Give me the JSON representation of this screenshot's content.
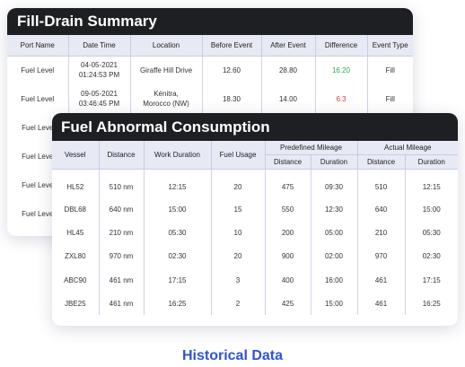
{
  "fill_drain": {
    "title": "Fill-Drain Summary",
    "headers": [
      "Port Name",
      "Date Time",
      "Location",
      "Before Event",
      "After Event",
      "Difference",
      "Event Type"
    ],
    "rows": [
      {
        "port": "Fuel Level",
        "date": "04-05-2021",
        "time": "01:24:53 PM",
        "loc1": "Giraffe Hill Drive",
        "loc2": "",
        "before": "12.60",
        "after": "28.80",
        "diff": "16.20",
        "diff_color": "green",
        "type": "Fill"
      },
      {
        "port": "Fuel Level",
        "date": "09-05-2021",
        "time": "03:46:45 PM",
        "loc1": "Kénitra,",
        "loc2": "Morocco (NW)",
        "before": "18.30",
        "after": "14.00",
        "diff": "6.3",
        "diff_color": "red",
        "type": "Fill"
      },
      {
        "port": "Fuel Leve",
        "date": "",
        "time": "",
        "loc1": "",
        "loc2": "",
        "before": "",
        "after": "",
        "diff": "",
        "diff_color": "",
        "type": ""
      },
      {
        "port": "Fuel Leve",
        "date": "",
        "time": "",
        "loc1": "",
        "loc2": "",
        "before": "",
        "after": "",
        "diff": "",
        "diff_color": "",
        "type": ""
      },
      {
        "port": "Fuel Leve",
        "date": "",
        "time": "",
        "loc1": "",
        "loc2": "",
        "before": "",
        "after": "",
        "diff": "",
        "diff_color": "",
        "type": ""
      },
      {
        "port": "Fuel Leve",
        "date": "",
        "time": "",
        "loc1": "",
        "loc2": "",
        "before": "",
        "after": "",
        "diff": "",
        "diff_color": "",
        "type": ""
      }
    ]
  },
  "abnormal": {
    "title": "Fuel Abnormal Consumption",
    "headers": {
      "vessel": "Vessel",
      "distance": "Distance",
      "work_duration": "Work Duration",
      "fuel_usage": "Fuel Usage",
      "predefined": "Predefined Mileage",
      "actual": "Actual Mileage",
      "sub_distance": "Distance",
      "sub_duration": "Duration"
    },
    "rows": [
      [
        "HL52",
        "510 nm",
        "12:15",
        "20",
        "475",
        "09:30",
        "510",
        "12:15"
      ],
      [
        "DBL68",
        "640 nm",
        "15:00",
        "15",
        "550",
        "12:30",
        "640",
        "15:00"
      ],
      [
        "HL45",
        "210 nm",
        "05:30",
        "10",
        "200",
        "05:00",
        "210",
        "05:30"
      ],
      [
        "ZXL80",
        "970 nm",
        "02:30",
        "20",
        "900",
        "02:00",
        "970",
        "02:30"
      ],
      [
        "ABC90",
        "461 nm",
        "17:15",
        "3",
        "400",
        "16:00",
        "461",
        "17:15"
      ],
      [
        "JBE25",
        "461 nm",
        "16:25",
        "2",
        "425",
        "15:00",
        "461",
        "16:25"
      ]
    ]
  },
  "footer": {
    "title": "Historical Data",
    "color": "#2f53d6"
  },
  "colors": {
    "header_bg": "#1e1f23",
    "table_header_bg": "#e7e9f5",
    "positive": "#2aa84a",
    "negative": "#e53935"
  }
}
